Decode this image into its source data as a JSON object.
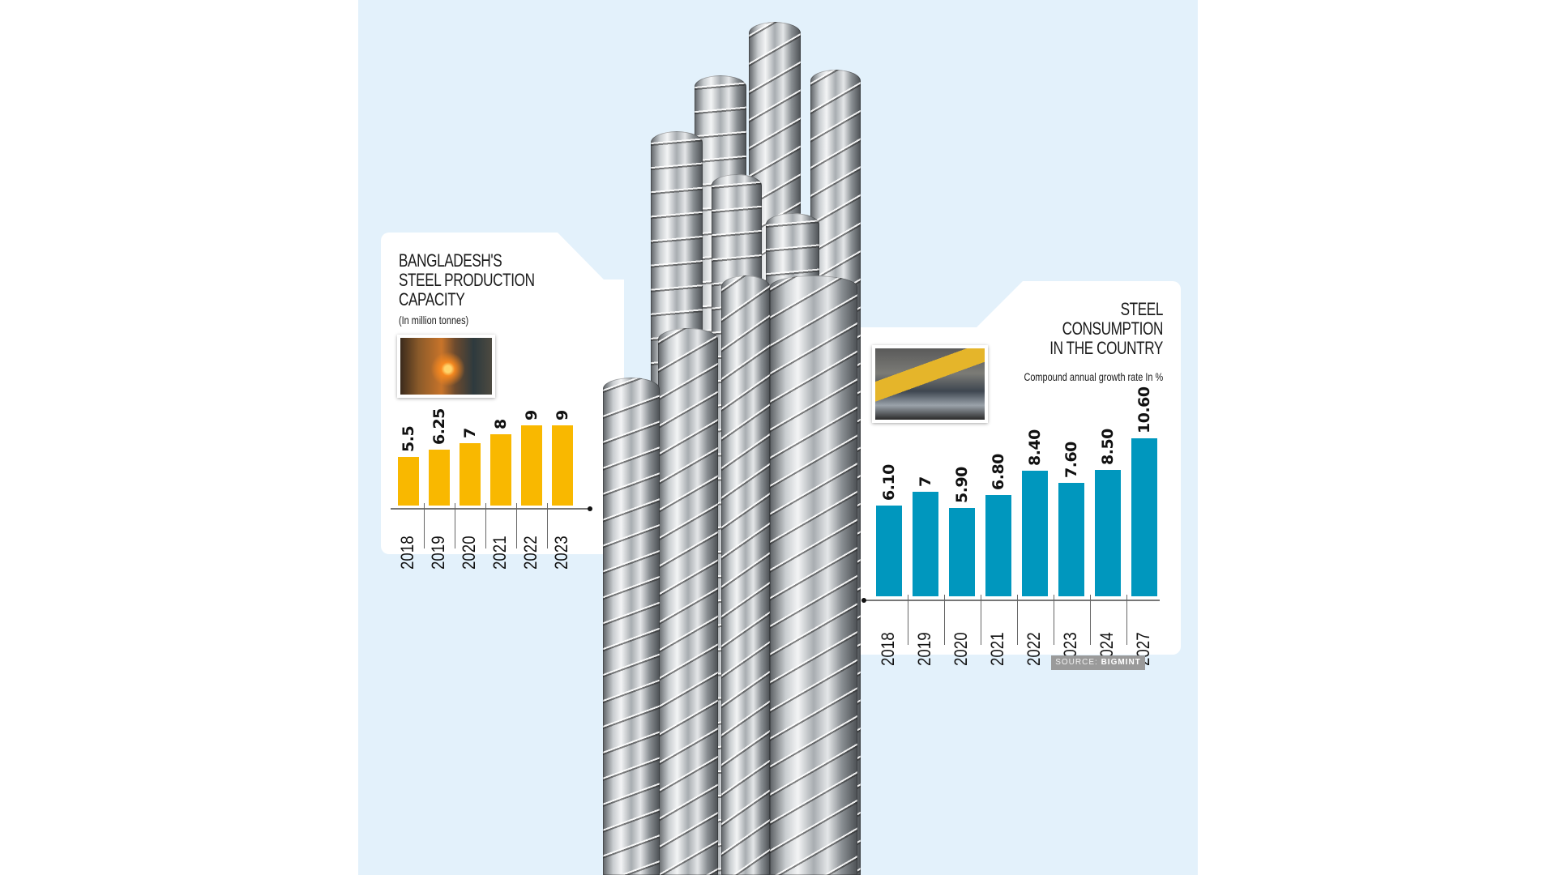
{
  "colors": {
    "background_panel": "#E3F1FB",
    "production_bar": "#F9B800",
    "consumption_bar": "#0097BE",
    "source_badge": "#9A9A9A"
  },
  "left_card": {
    "title": "BANGLADESH'S\nSTEEL PRODUCTION\nCAPACITY",
    "subtitle": "(In million tonnes)",
    "image": "steel-mill-furnace-photo"
  },
  "right_card": {
    "title": "STEEL\nCONSUMPTION\nIN THE COUNTRY",
    "subtitle": "Compound annual growth rate  In %",
    "image": "steel-plates-crane-truck-photo"
  },
  "source": {
    "prefix": "SOURCE:",
    "name": "BIGMINT"
  },
  "chart_data": [
    {
      "type": "bar",
      "title": "Bangladesh's Steel Production Capacity",
      "subtitle": "(In million tonnes)",
      "categories": [
        "2018",
        "2019",
        "2020",
        "2021",
        "2022",
        "2023"
      ],
      "values": [
        5.5,
        6.25,
        7,
        8,
        9,
        9
      ],
      "labels": [
        "5.5",
        "6.25",
        "7",
        "8",
        "9",
        "9"
      ],
      "xlabel": "",
      "ylabel": "Million tonnes",
      "ylim": [
        0,
        10
      ],
      "grid": false,
      "color": "#F9B800"
    },
    {
      "type": "bar",
      "title": "Steel Consumption in the Country",
      "subtitle": "Compound annual growth rate In %",
      "categories": [
        "2018",
        "2019",
        "2020",
        "2021",
        "2022",
        "2023",
        "2024",
        "2027"
      ],
      "values": [
        6.1,
        7,
        5.9,
        6.8,
        8.4,
        7.6,
        8.5,
        10.6
      ],
      "labels": [
        "6.10",
        "7",
        "5.90",
        "6.80",
        "8.40",
        "7.60",
        "8.50",
        "10.60"
      ],
      "xlabel": "",
      "ylabel": "%",
      "ylim": [
        0,
        12
      ],
      "grid": false,
      "color": "#0097BE",
      "source": "SOURCE: BIGMINT"
    }
  ]
}
